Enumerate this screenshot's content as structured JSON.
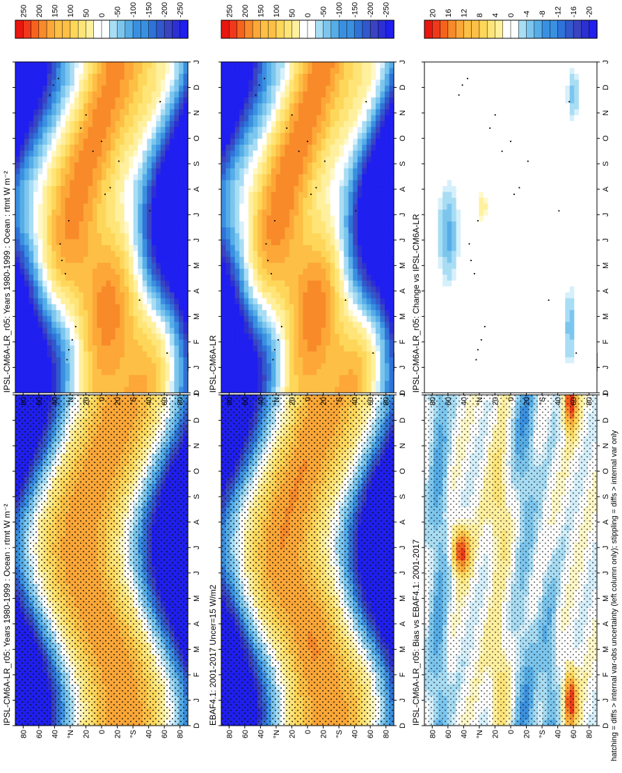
{
  "footnote": "hatching = diffs > internal var-obs uncertainty (left column only); stippling = diffs > internal var only",
  "colorbars": {
    "full": [
      "250",
      "200",
      "150",
      "100",
      "50",
      "0",
      "-50",
      "-100",
      "-150",
      "-200",
      "-250"
    ],
    "diff": [
      "20",
      "16",
      "12",
      "8",
      "4",
      "0",
      "-4",
      "-8",
      "-12",
      "-16",
      "-20"
    ]
  },
  "axes": {
    "months": [
      "D",
      "J",
      "F",
      "M",
      "A",
      "M",
      "J",
      "J",
      "A",
      "S",
      "O",
      "N",
      "D",
      "J"
    ],
    "lat": [
      "80",
      "60",
      "40",
      "°N",
      "20",
      "0",
      "20",
      "°S",
      "40",
      "60",
      "80"
    ]
  },
  "colors": {
    "warm_scale": [
      "#e8170f",
      "#f0381a",
      "#f5631d",
      "#f88a2a",
      "#fca737",
      "#fdbf45",
      "#fed75a",
      "#ffe578",
      "#fff09e",
      "#fff8c8"
    ],
    "cool_scale": [
      "#d6f0fb",
      "#a8ddf4",
      "#7cc6ee",
      "#56ade7",
      "#3a90e0",
      "#2f72d8",
      "#3158cc",
      "#3a44c0",
      "#2c2fd2",
      "#1f1ff0"
    ],
    "neutral": "#ffffff"
  },
  "chart_data": [
    {
      "type": "heatmap",
      "panel": "left-top",
      "title": "IPSL-CM6A-LR_r05: Years 1980-1999 : Ocean : rtmt W m⁻²",
      "x": "month (Jan..Jan)",
      "y": "latitude",
      "colorbar": "full",
      "stippling": true,
      "hatching": true,
      "pattern": "seasonal insolation: positive tropics, negative winter pole"
    },
    {
      "type": "heatmap",
      "panel": "left-middle",
      "title": "EBAF4.1: 2001-2017 Uncer=15 W/m2",
      "x": "month",
      "y": "latitude",
      "colorbar": "full",
      "stippling": true,
      "hatching": true
    },
    {
      "type": "heatmap",
      "panel": "left-bottom",
      "title": "IPSL-CM6A-LR_r05: Bias vs EBAF4.1: 2001-2017",
      "x": "month",
      "y": "latitude",
      "colorbar": "diff",
      "stippling": true,
      "hatching": true
    },
    {
      "type": "heatmap",
      "panel": "right-top",
      "title": "IPSL-CM6A-LR_r05: Years 1980-1999 : Ocean : rtmt W m⁻²",
      "x": "month",
      "y": "latitude",
      "colorbar": "full",
      "stippling": true,
      "hatching": false
    },
    {
      "type": "heatmap",
      "panel": "right-middle",
      "title": "IPSL-CM6A-LR",
      "x": "month",
      "y": "latitude",
      "colorbar": "full",
      "stippling": true,
      "hatching": false
    },
    {
      "type": "heatmap",
      "panel": "right-bottom",
      "title": "IPSL-CM6A-LR_r05: Change vs IPSL-CM6A-LR",
      "x": "month",
      "y": "latitude",
      "colorbar": "diff",
      "stippling": true,
      "hatching": false
    }
  ]
}
